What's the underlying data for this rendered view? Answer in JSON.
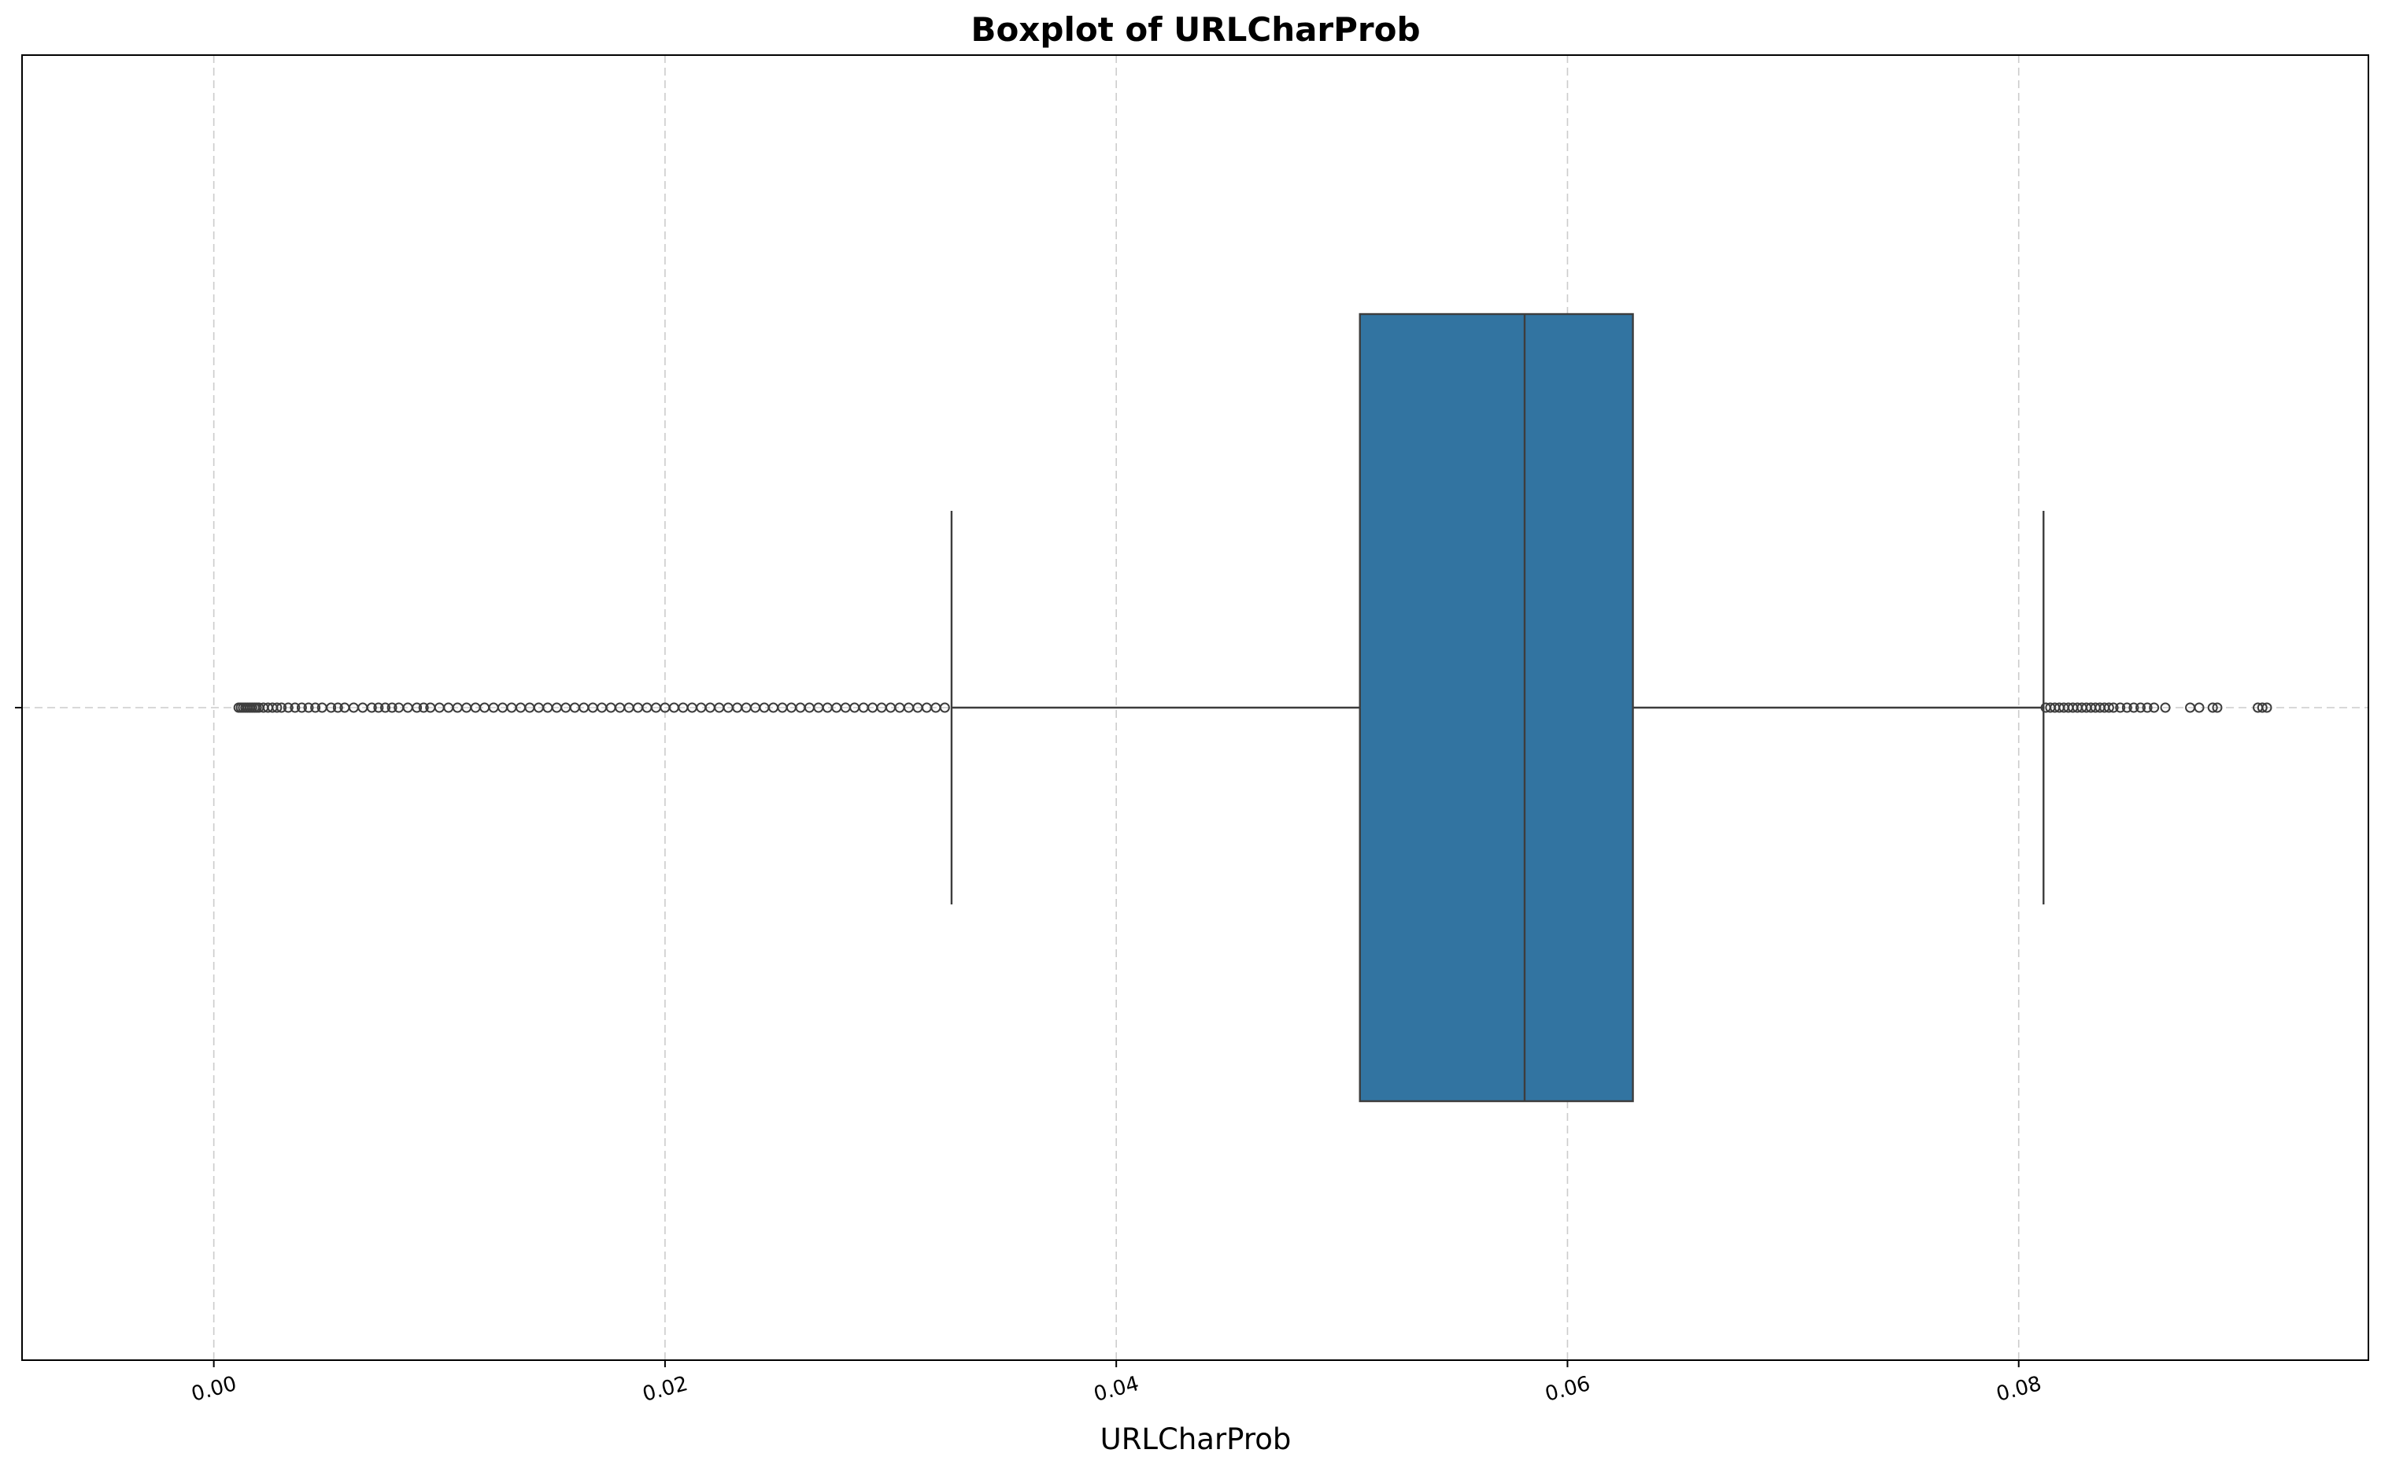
{
  "chart_data": {
    "type": "boxplot",
    "title": "Boxplot of URLCharProb",
    "xlabel": "URLCharProb",
    "ylabel": "",
    "orientation": "horizontal",
    "xlim": [
      -0.0085,
      0.0955
    ],
    "x_ticks": [
      0.0,
      0.02,
      0.04,
      0.06,
      0.08
    ],
    "x_tick_labels": [
      "0.00",
      "0.02",
      "0.04",
      "0.06",
      "0.08"
    ],
    "grid": true,
    "box_color": "#3274a1",
    "line_color": "#3d3d3d",
    "box": {
      "whisker_low": 0.0327,
      "q1": 0.0508,
      "median": 0.0581,
      "q3": 0.0629,
      "whisker_high": 0.0811
    },
    "outliers_low": [
      0.0011,
      0.0012,
      0.0013,
      0.0014,
      0.0015,
      0.0016,
      0.0017,
      0.0018,
      0.0019,
      0.002,
      0.0022,
      0.0024,
      0.0026,
      0.0028,
      0.003,
      0.0033,
      0.0036,
      0.0039,
      0.0042,
      0.0045,
      0.0048,
      0.0052,
      0.0055,
      0.0058,
      0.0062,
      0.0066,
      0.007,
      0.0073,
      0.0076,
      0.0079,
      0.0082,
      0.0086,
      0.009,
      0.0093,
      0.0096,
      0.01,
      0.0104,
      0.0108,
      0.0112,
      0.0116,
      0.012,
      0.0124,
      0.0128,
      0.0132,
      0.0136,
      0.014,
      0.0144,
      0.0148,
      0.0152,
      0.0156,
      0.016,
      0.0164,
      0.0168,
      0.0172,
      0.0176,
      0.018,
      0.0184,
      0.0188,
      0.0192,
      0.0196,
      0.02,
      0.0204,
      0.0208,
      0.0212,
      0.0216,
      0.022,
      0.0224,
      0.0228,
      0.0232,
      0.0236,
      0.024,
      0.0244,
      0.0248,
      0.0252,
      0.0256,
      0.026,
      0.0264,
      0.0268,
      0.0272,
      0.0276,
      0.028,
      0.0284,
      0.0288,
      0.0292,
      0.0296,
      0.03,
      0.0304,
      0.0308,
      0.0312,
      0.0316,
      0.032,
      0.0324
    ],
    "outliers_high": [
      0.0812,
      0.0814,
      0.0816,
      0.0818,
      0.082,
      0.0822,
      0.0824,
      0.0826,
      0.0828,
      0.083,
      0.0832,
      0.0834,
      0.0836,
      0.0838,
      0.084,
      0.0842,
      0.0845,
      0.0848,
      0.0851,
      0.0854,
      0.0857,
      0.086,
      0.0865,
      0.0876,
      0.088,
      0.0886,
      0.0888,
      0.0906,
      0.0908,
      0.091
    ]
  }
}
